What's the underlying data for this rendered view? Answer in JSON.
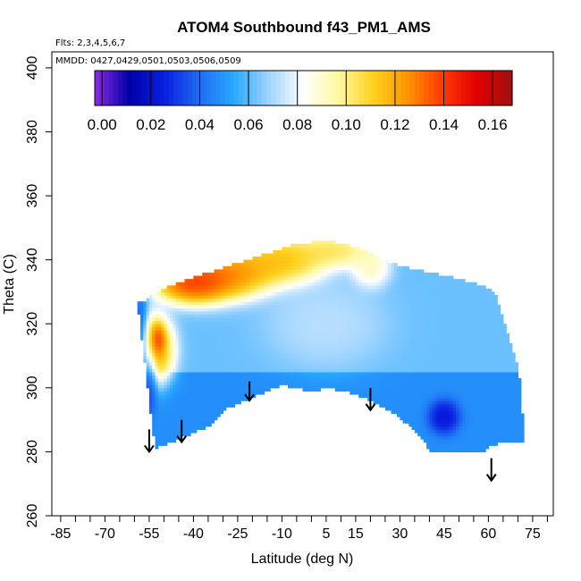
{
  "chart_data": {
    "type": "heatmap",
    "title": "ATOM4 Southbound f43_PM1_AMS",
    "annotations": {
      "flights": "Flts: 2,3,4,5,6,7",
      "dates": "MMDD: 0427,0429,0501,0503,0506,0509"
    },
    "xlabel": "Latitude (deg N)",
    "ylabel": "Theta (C)",
    "xlim": [
      -88,
      82
    ],
    "ylim": [
      260,
      405
    ],
    "xticks": [
      -85,
      -70,
      -55,
      -40,
      -25,
      -10,
      5,
      15,
      30,
      45,
      60,
      75
    ],
    "xtick_labels": [
      "-85",
      "-70",
      "-55",
      "-40",
      "-25",
      "-10",
      "5",
      "15",
      "30",
      "45",
      "60",
      "75"
    ],
    "yticks": [
      260,
      280,
      300,
      320,
      340,
      360,
      380,
      400
    ],
    "ytick_labels": [
      "260",
      "280",
      "300",
      "320",
      "340",
      "360",
      "380",
      "400"
    ],
    "colorbar": {
      "min": -0.003,
      "max": 0.168,
      "ticks": [
        0.0,
        0.02,
        0.04,
        0.06,
        0.08,
        0.1,
        0.12,
        0.14,
        0.16
      ],
      "tick_labels": [
        "0.00",
        "0.02",
        "0.04",
        "0.06",
        "0.08",
        "0.10",
        "0.12",
        "0.14",
        "0.16"
      ],
      "colors": [
        "#8a2be2",
        "#0000a8",
        "#0a1fe0",
        "#1e6cf2",
        "#28a8ff",
        "#9fd4ff",
        "#ffffff",
        "#fff8a0",
        "#ffd21e",
        "#ff9400",
        "#ff3800",
        "#e00000",
        "#a01010"
      ]
    },
    "domain_bottom": [
      [
        -53,
        281
      ],
      [
        -45,
        284
      ],
      [
        -40,
        286
      ],
      [
        -35,
        288
      ],
      [
        -30,
        293
      ],
      [
        -20,
        297
      ],
      [
        -10,
        301
      ],
      [
        -5,
        300
      ],
      [
        0,
        299
      ],
      [
        5,
        300
      ],
      [
        12,
        299
      ],
      [
        20,
        296
      ],
      [
        28,
        292
      ],
      [
        35,
        287
      ],
      [
        38,
        284
      ],
      [
        40,
        280
      ],
      [
        58,
        280
      ],
      [
        60,
        282
      ],
      [
        65,
        283
      ],
      [
        72,
        283
      ]
    ],
    "domain_top": [
      [
        72,
        283
      ],
      [
        71,
        300
      ],
      [
        69,
        310
      ],
      [
        67,
        315
      ],
      [
        65,
        322
      ],
      [
        62,
        330
      ],
      [
        58,
        332
      ],
      [
        50,
        334
      ],
      [
        40,
        336
      ],
      [
        30,
        338
      ],
      [
        22,
        341
      ],
      [
        15,
        344
      ],
      [
        5,
        346
      ],
      [
        -5,
        345
      ],
      [
        -15,
        342
      ],
      [
        -25,
        339
      ],
      [
        -35,
        336
      ],
      [
        -45,
        333
      ],
      [
        -52,
        330
      ],
      [
        -57,
        327
      ],
      [
        -59,
        327
      ]
    ],
    "domain_left": [
      [
        -59,
        327
      ],
      [
        -57,
        317
      ],
      [
        -55,
        305
      ],
      [
        -53,
        294
      ],
      [
        -53,
        281
      ]
    ],
    "field_sources": [
      {
        "lat": -53,
        "theta": 312,
        "value": 0.135,
        "radius_lat": 5,
        "radius_theta": 8
      },
      {
        "lat": -52,
        "theta": 315,
        "value": 0.16,
        "radius_lat": 2,
        "radius_theta": 4
      },
      {
        "lat": -40,
        "theta": 333,
        "value": 0.16,
        "radius_lat": 10,
        "radius_theta": 5
      },
      {
        "lat": -28,
        "theta": 336,
        "value": 0.145,
        "radius_lat": 12,
        "radius_theta": 6
      },
      {
        "lat": -10,
        "theta": 340,
        "value": 0.13,
        "radius_lat": 12,
        "radius_theta": 6
      },
      {
        "lat": 8,
        "theta": 343,
        "value": 0.115,
        "radius_lat": 10,
        "radius_theta": 4
      },
      {
        "lat": 20,
        "theta": 338,
        "value": 0.1,
        "radius_lat": 5,
        "radius_theta": 5
      },
      {
        "lat": -58,
        "theta": 312,
        "value": 0.02,
        "radius_lat": 2,
        "radius_theta": 14
      },
      {
        "lat": -55,
        "theta": 303,
        "value": 0.025,
        "radius_lat": 2,
        "radius_theta": 8
      },
      {
        "lat": 45,
        "theta": 291,
        "value": 0.015,
        "radius_lat": 4,
        "radius_theta": 4
      },
      {
        "lat": 5,
        "theta": 320,
        "value": 0.075,
        "radius_lat": 15,
        "radius_theta": 10
      }
    ],
    "field_base": {
      "below": 0.048,
      "above": 0.062,
      "split_theta": 305
    },
    "arrows": [
      {
        "lat": -55,
        "theta_top": 287,
        "theta_bottom": 280
      },
      {
        "lat": -44,
        "theta_top": 290,
        "theta_bottom": 283
      },
      {
        "lat": -21,
        "theta_top": 302,
        "theta_bottom": 296
      },
      {
        "lat": 20,
        "theta_top": 300,
        "theta_bottom": 293
      },
      {
        "lat": 61,
        "theta_top": 278,
        "theta_bottom": 271
      }
    ]
  }
}
